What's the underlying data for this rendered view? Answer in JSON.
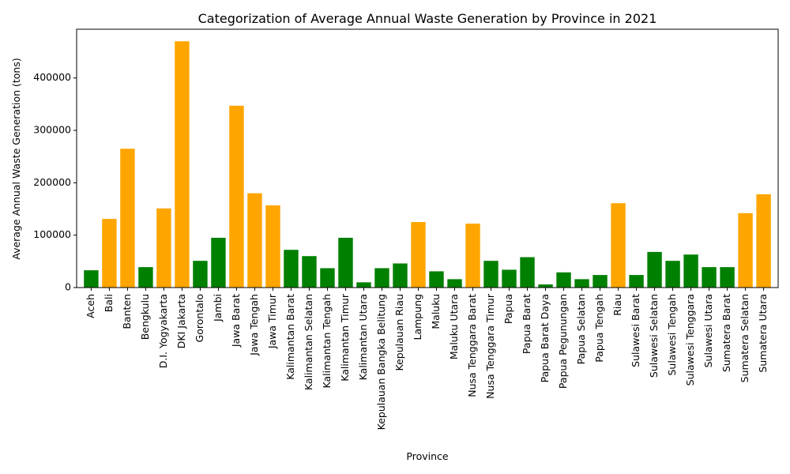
{
  "chart_data": {
    "type": "bar",
    "title": "Categorization of Average Annual Waste Generation by Province in 2021",
    "xlabel": "Province",
    "ylabel": "Average Annual Waste Generation (tons)",
    "ylim": [
      0,
      493000
    ],
    "yticks": [
      0,
      100000,
      200000,
      300000,
      400000
    ],
    "grid": false,
    "colors": {
      "high": "#ffa500",
      "low": "#008000"
    },
    "categories": [
      "Aceh",
      "Bali",
      "Banten",
      "Bengkulu",
      "D.I. Yogyakarta",
      "DKI Jakarta",
      "Gorontalo",
      "Jambi",
      "Jawa Barat",
      "Jawa Tengah",
      "Jawa Timur",
      "Kalimantan Barat",
      "Kalimantan Selatan",
      "Kalimantan Tengah",
      "Kalimantan Timur",
      "Kalimantan Utara",
      "Kepulauan Bangka Belitung",
      "Kepulauan Riau",
      "Lampung",
      "Maluku",
      "Maluku Utara",
      "Nusa Tenggara Barat",
      "Nusa Tenggara Timur",
      "Papua",
      "Papua Barat",
      "Papua Barat Daya",
      "Papua Pegunungan",
      "Papua Selatan",
      "Papua Tengah",
      "Riau",
      "Sulawesi Barat",
      "Sulawesi Selatan",
      "Sulawesi Tengah",
      "Sulawesi Tenggara",
      "Sulawesi Utara",
      "Sumatera Barat",
      "Sumatera Selatan",
      "Sumatera Utara"
    ],
    "values": [
      33000,
      131000,
      265000,
      39000,
      151000,
      470000,
      51000,
      95000,
      347000,
      180000,
      157000,
      72000,
      60000,
      37000,
      95000,
      10000,
      37000,
      46000,
      125000,
      31000,
      16000,
      122000,
      51000,
      34000,
      58000,
      6000,
      29000,
      16000,
      24000,
      161000,
      24000,
      68000,
      51000,
      63000,
      39000,
      39000,
      142000,
      178000
    ],
    "category_class": [
      "low",
      "high",
      "high",
      "low",
      "high",
      "high",
      "low",
      "low",
      "high",
      "high",
      "high",
      "low",
      "low",
      "low",
      "low",
      "low",
      "low",
      "low",
      "high",
      "low",
      "low",
      "high",
      "low",
      "low",
      "low",
      "low",
      "low",
      "low",
      "low",
      "high",
      "low",
      "low",
      "low",
      "low",
      "low",
      "low",
      "high",
      "high"
    ]
  }
}
